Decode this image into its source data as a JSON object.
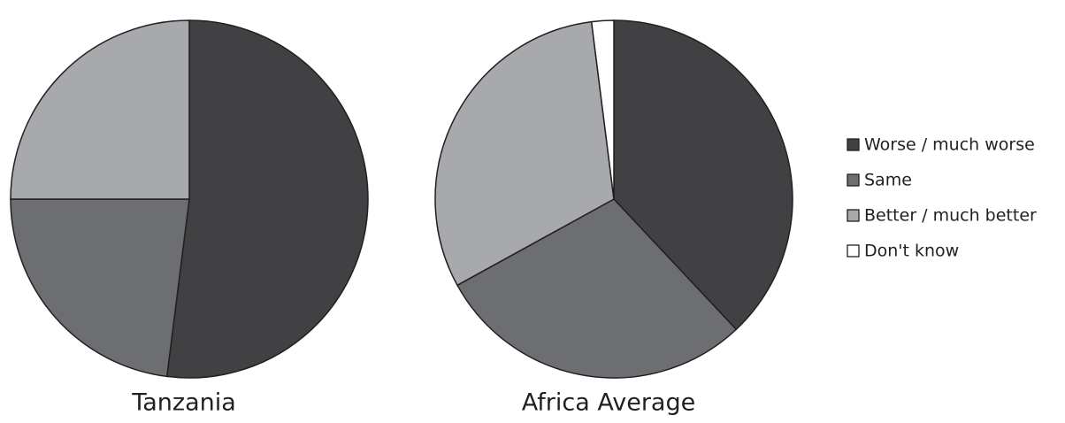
{
  "chart_data": [
    {
      "type": "pie",
      "title": "Tanzania",
      "categories": [
        "Worse / much worse",
        "Same",
        "Better / much better"
      ],
      "values": [
        52,
        23,
        25
      ],
      "colors": [
        "#414042",
        "#6d6e71",
        "#a7a9ac"
      ]
    },
    {
      "type": "pie",
      "title": "Africa Average",
      "categories": [
        "Worse / much worse",
        "Same",
        "Better / much better",
        "Don't know"
      ],
      "values": [
        38,
        29,
        31,
        2
      ],
      "colors": [
        "#414042",
        "#6d6e71",
        "#a7a9ac",
        "#ffffff"
      ],
      "legend": "right"
    }
  ]
}
